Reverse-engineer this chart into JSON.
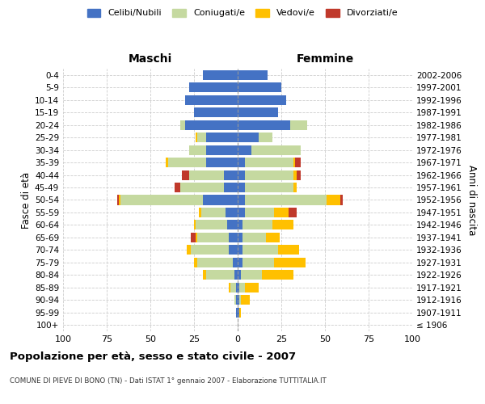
{
  "age_groups": [
    "100+",
    "95-99",
    "90-94",
    "85-89",
    "80-84",
    "75-79",
    "70-74",
    "65-69",
    "60-64",
    "55-59",
    "50-54",
    "45-49",
    "40-44",
    "35-39",
    "30-34",
    "25-29",
    "20-24",
    "15-19",
    "10-14",
    "5-9",
    "0-4"
  ],
  "birth_years": [
    "≤ 1906",
    "1907-1911",
    "1912-1916",
    "1917-1921",
    "1922-1926",
    "1927-1931",
    "1932-1936",
    "1937-1941",
    "1942-1946",
    "1947-1951",
    "1952-1956",
    "1957-1961",
    "1962-1966",
    "1967-1971",
    "1972-1976",
    "1977-1981",
    "1982-1986",
    "1987-1991",
    "1992-1996",
    "1997-2001",
    "2002-2006"
  ],
  "male": {
    "celibi": [
      0,
      1,
      1,
      1,
      2,
      3,
      5,
      5,
      6,
      7,
      20,
      8,
      8,
      18,
      18,
      18,
      30,
      25,
      30,
      28,
      20
    ],
    "coniugati": [
      0,
      0,
      1,
      3,
      16,
      20,
      22,
      18,
      18,
      14,
      47,
      25,
      20,
      22,
      10,
      5,
      3,
      0,
      0,
      0,
      0
    ],
    "vedovi": [
      0,
      0,
      0,
      1,
      2,
      2,
      2,
      1,
      1,
      1,
      1,
      0,
      0,
      1,
      0,
      1,
      0,
      0,
      0,
      0,
      0
    ],
    "divorziati": [
      0,
      0,
      0,
      0,
      0,
      0,
      0,
      3,
      0,
      0,
      1,
      3,
      4,
      0,
      0,
      0,
      0,
      0,
      0,
      0,
      0
    ]
  },
  "female": {
    "nubili": [
      0,
      1,
      1,
      1,
      2,
      3,
      3,
      3,
      3,
      4,
      4,
      4,
      4,
      4,
      8,
      12,
      30,
      23,
      28,
      25,
      17
    ],
    "coniugate": [
      0,
      0,
      1,
      3,
      12,
      18,
      20,
      13,
      17,
      17,
      47,
      28,
      28,
      28,
      28,
      8,
      10,
      0,
      0,
      0,
      0
    ],
    "vedove": [
      0,
      1,
      5,
      8,
      18,
      18,
      12,
      8,
      12,
      8,
      8,
      2,
      2,
      1,
      0,
      0,
      0,
      0,
      0,
      0,
      0
    ],
    "divorziate": [
      0,
      0,
      0,
      0,
      0,
      0,
      0,
      0,
      0,
      5,
      1,
      0,
      2,
      3,
      0,
      0,
      0,
      0,
      0,
      0,
      0
    ]
  },
  "colors": {
    "celibi": "#4472C4",
    "coniugati": "#c5d9a0",
    "vedovi": "#ffc000",
    "divorziati": "#c0392b"
  },
  "title": "Popolazione per età, sesso e stato civile - 2007",
  "subtitle": "COMUNE DI PIEVE DI BONO (TN) - Dati ISTAT 1° gennaio 2007 - Elaborazione TUTTITALIA.IT",
  "xlabel_left": "Maschi",
  "xlabel_right": "Femmine",
  "ylabel_left": "Fasce di età",
  "ylabel_right": "Anni di nascita",
  "legend_labels": [
    "Celibi/Nubili",
    "Coniugati/e",
    "Vedovi/e",
    "Divorziati/e"
  ],
  "xlim": 100,
  "bg_color": "#ffffff",
  "grid_color": "#cccccc"
}
